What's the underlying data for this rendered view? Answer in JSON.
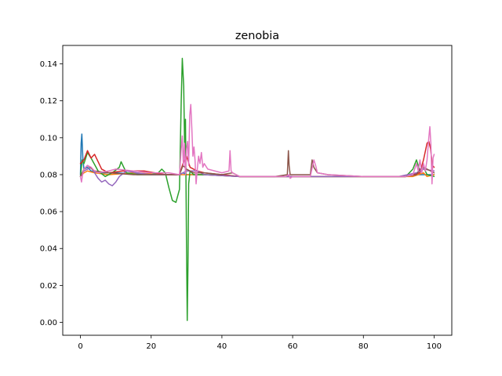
{
  "chart_data": {
    "type": "line",
    "title": "zenobia",
    "xlabel": "",
    "ylabel": "",
    "xlim": [
      -5,
      105
    ],
    "ylim": [
      -0.007,
      0.15
    ],
    "xticks": [
      0,
      20,
      40,
      60,
      80,
      100
    ],
    "xtick_labels": [
      "0",
      "20",
      "40",
      "60",
      "80",
      "100"
    ],
    "yticks": [
      0.0,
      0.02,
      0.04,
      0.06,
      0.08,
      0.1,
      0.12,
      0.14
    ],
    "ytick_labels": [
      "0.00",
      "0.02",
      "0.04",
      "0.06",
      "0.08",
      "0.10",
      "0.12",
      "0.14"
    ],
    "grid": false,
    "legend": "none",
    "series": [
      {
        "color": "#1f77b4",
        "points": [
          [
            0,
            0.08
          ],
          [
            0.2,
            0.097
          ],
          [
            0.4,
            0.102
          ],
          [
            0.7,
            0.088
          ],
          [
            1,
            0.083
          ],
          [
            2,
            0.084
          ],
          [
            3,
            0.082
          ],
          [
            5,
            0.081
          ],
          [
            10,
            0.081
          ],
          [
            20,
            0.08
          ],
          [
            28,
            0.08
          ],
          [
            29,
            0.081
          ],
          [
            30,
            0.08
          ],
          [
            35,
            0.08
          ],
          [
            45,
            0.079
          ],
          [
            60,
            0.079
          ],
          [
            80,
            0.079
          ],
          [
            92,
            0.079
          ],
          [
            95,
            0.08
          ],
          [
            100,
            0.08
          ]
        ]
      },
      {
        "color": "#ff7f0e",
        "points": [
          [
            0,
            0.079
          ],
          [
            1,
            0.081
          ],
          [
            2,
            0.082
          ],
          [
            4,
            0.081
          ],
          [
            8,
            0.08
          ],
          [
            15,
            0.081
          ],
          [
            25,
            0.08
          ],
          [
            28,
            0.08
          ],
          [
            30,
            0.08
          ],
          [
            35,
            0.08
          ],
          [
            45,
            0.079
          ],
          [
            60,
            0.079
          ],
          [
            70,
            0.079
          ],
          [
            80,
            0.079
          ],
          [
            90,
            0.079
          ],
          [
            94,
            0.079
          ],
          [
            97,
            0.081
          ],
          [
            98,
            0.079
          ],
          [
            100,
            0.08
          ]
        ]
      },
      {
        "color": "#2ca02c",
        "points": [
          [
            0,
            0.079
          ],
          [
            0.5,
            0.088
          ],
          [
            1,
            0.086
          ],
          [
            2,
            0.092
          ],
          [
            3,
            0.089
          ],
          [
            5,
            0.082
          ],
          [
            7,
            0.079
          ],
          [
            9,
            0.081
          ],
          [
            11,
            0.084
          ],
          [
            11.5,
            0.087
          ],
          [
            12,
            0.085
          ],
          [
            13,
            0.081
          ],
          [
            16,
            0.08
          ],
          [
            20,
            0.08
          ],
          [
            22,
            0.081
          ],
          [
            23,
            0.083
          ],
          [
            24,
            0.081
          ],
          [
            25,
            0.073
          ],
          [
            26,
            0.066
          ],
          [
            27,
            0.065
          ],
          [
            28,
            0.072
          ],
          [
            28.5,
            0.12
          ],
          [
            28.8,
            0.143
          ],
          [
            29.2,
            0.128
          ],
          [
            29.5,
            0.09
          ],
          [
            29.7,
            0.11
          ],
          [
            30,
            0.04
          ],
          [
            30.2,
            0.001
          ],
          [
            30.4,
            0.03
          ],
          [
            30.6,
            0.075
          ],
          [
            31,
            0.082
          ],
          [
            32,
            0.08
          ],
          [
            35,
            0.08
          ],
          [
            40,
            0.08
          ],
          [
            45,
            0.079
          ],
          [
            60,
            0.079
          ],
          [
            80,
            0.079
          ],
          [
            92,
            0.079
          ],
          [
            94,
            0.083
          ],
          [
            95,
            0.088
          ],
          [
            96,
            0.082
          ],
          [
            97,
            0.084
          ],
          [
            98,
            0.08
          ],
          [
            100,
            0.079
          ]
        ]
      },
      {
        "color": "#d62728",
        "points": [
          [
            0,
            0.086
          ],
          [
            1,
            0.088
          ],
          [
            2,
            0.093
          ],
          [
            3,
            0.089
          ],
          [
            4,
            0.091
          ],
          [
            5,
            0.087
          ],
          [
            6,
            0.083
          ],
          [
            8,
            0.081
          ],
          [
            12,
            0.082
          ],
          [
            18,
            0.082
          ],
          [
            24,
            0.08
          ],
          [
            28,
            0.08
          ],
          [
            29,
            0.086
          ],
          [
            30,
            0.09
          ],
          [
            31,
            0.084
          ],
          [
            33,
            0.082
          ],
          [
            35,
            0.081
          ],
          [
            40,
            0.08
          ],
          [
            45,
            0.079
          ],
          [
            60,
            0.079
          ],
          [
            80,
            0.079
          ],
          [
            92,
            0.079
          ],
          [
            94,
            0.08
          ],
          [
            96,
            0.081
          ],
          [
            97,
            0.088
          ],
          [
            98,
            0.097
          ],
          [
            98.5,
            0.098
          ],
          [
            99,
            0.094
          ],
          [
            99.5,
            0.085
          ],
          [
            100,
            0.084
          ]
        ]
      },
      {
        "color": "#9467bd",
        "points": [
          [
            0,
            0.079
          ],
          [
            1,
            0.082
          ],
          [
            2,
            0.083
          ],
          [
            3,
            0.084
          ],
          [
            4,
            0.081
          ],
          [
            5,
            0.078
          ],
          [
            6,
            0.076
          ],
          [
            7,
            0.077
          ],
          [
            8,
            0.075
          ],
          [
            9,
            0.074
          ],
          [
            10,
            0.076
          ],
          [
            11,
            0.079
          ],
          [
            13,
            0.082
          ],
          [
            16,
            0.081
          ],
          [
            20,
            0.08
          ],
          [
            25,
            0.08
          ],
          [
            28,
            0.08
          ],
          [
            30,
            0.082
          ],
          [
            33,
            0.082
          ],
          [
            35,
            0.08
          ],
          [
            45,
            0.079
          ],
          [
            60,
            0.079
          ],
          [
            80,
            0.079
          ],
          [
            90,
            0.079
          ],
          [
            95,
            0.081
          ],
          [
            97,
            0.083
          ],
          [
            100,
            0.082
          ]
        ]
      },
      {
        "color": "#8c564b",
        "points": [
          [
            0,
            0.079
          ],
          [
            1,
            0.083
          ],
          [
            2,
            0.085
          ],
          [
            4,
            0.082
          ],
          [
            8,
            0.081
          ],
          [
            15,
            0.08
          ],
          [
            25,
            0.08
          ],
          [
            28,
            0.08
          ],
          [
            29,
            0.085
          ],
          [
            30,
            0.083
          ],
          [
            32,
            0.081
          ],
          [
            35,
            0.081
          ],
          [
            40,
            0.08
          ],
          [
            43,
            0.081
          ],
          [
            45,
            0.079
          ],
          [
            55,
            0.079
          ],
          [
            58.5,
            0.08
          ],
          [
            58.8,
            0.093
          ],
          [
            59,
            0.085
          ],
          [
            59.3,
            0.08
          ],
          [
            62,
            0.08
          ],
          [
            65,
            0.08
          ],
          [
            65.5,
            0.088
          ],
          [
            66,
            0.084
          ],
          [
            67,
            0.081
          ],
          [
            70,
            0.08
          ],
          [
            80,
            0.079
          ],
          [
            92,
            0.079
          ],
          [
            95,
            0.08
          ],
          [
            96,
            0.083
          ],
          [
            97,
            0.084
          ],
          [
            99,
            0.082
          ],
          [
            100,
            0.081
          ]
        ]
      },
      {
        "color": "#e377c2",
        "points": [
          [
            0,
            0.079
          ],
          [
            0.3,
            0.076
          ],
          [
            0.6,
            0.08
          ],
          [
            1,
            0.083
          ],
          [
            2,
            0.085
          ],
          [
            3,
            0.084
          ],
          [
            4,
            0.082
          ],
          [
            5,
            0.081
          ],
          [
            8,
            0.082
          ],
          [
            10,
            0.083
          ],
          [
            15,
            0.082
          ],
          [
            20,
            0.081
          ],
          [
            25,
            0.081
          ],
          [
            28,
            0.08
          ],
          [
            28.5,
            0.094
          ],
          [
            28.8,
            0.101
          ],
          [
            29.1,
            0.085
          ],
          [
            29.4,
            0.097
          ],
          [
            29.7,
            0.08
          ],
          [
            30,
            0.094
          ],
          [
            30.3,
            0.098
          ],
          [
            30.6,
            0.085
          ],
          [
            30.9,
            0.112
          ],
          [
            31.2,
            0.118
          ],
          [
            31.5,
            0.105
          ],
          [
            31.8,
            0.09
          ],
          [
            32.1,
            0.095
          ],
          [
            32.4,
            0.088
          ],
          [
            32.7,
            0.075
          ],
          [
            33,
            0.082
          ],
          [
            33.4,
            0.09
          ],
          [
            33.8,
            0.086
          ],
          [
            34.2,
            0.092
          ],
          [
            34.6,
            0.084
          ],
          [
            35,
            0.086
          ],
          [
            36,
            0.083
          ],
          [
            38,
            0.082
          ],
          [
            40,
            0.081
          ],
          [
            42,
            0.082
          ],
          [
            42.3,
            0.093
          ],
          [
            42.6,
            0.082
          ],
          [
            43,
            0.081
          ],
          [
            45,
            0.079
          ],
          [
            55,
            0.079
          ],
          [
            58,
            0.079
          ],
          [
            59,
            0.08
          ],
          [
            59.3,
            0.078
          ],
          [
            60,
            0.079
          ],
          [
            65,
            0.079
          ],
          [
            66,
            0.088
          ],
          [
            66.5,
            0.085
          ],
          [
            67,
            0.081
          ],
          [
            70,
            0.08
          ],
          [
            80,
            0.079
          ],
          [
            92,
            0.079
          ],
          [
            94,
            0.08
          ],
          [
            95,
            0.086
          ],
          [
            95.5,
            0.082
          ],
          [
            96,
            0.088
          ],
          [
            96.5,
            0.081
          ],
          [
            97,
            0.086
          ],
          [
            97.5,
            0.082
          ],
          [
            98,
            0.088
          ],
          [
            98.5,
            0.1
          ],
          [
            98.8,
            0.106
          ],
          [
            99.1,
            0.096
          ],
          [
            99.4,
            0.075
          ],
          [
            99.7,
            0.089
          ],
          [
            100,
            0.091
          ]
        ]
      }
    ]
  }
}
